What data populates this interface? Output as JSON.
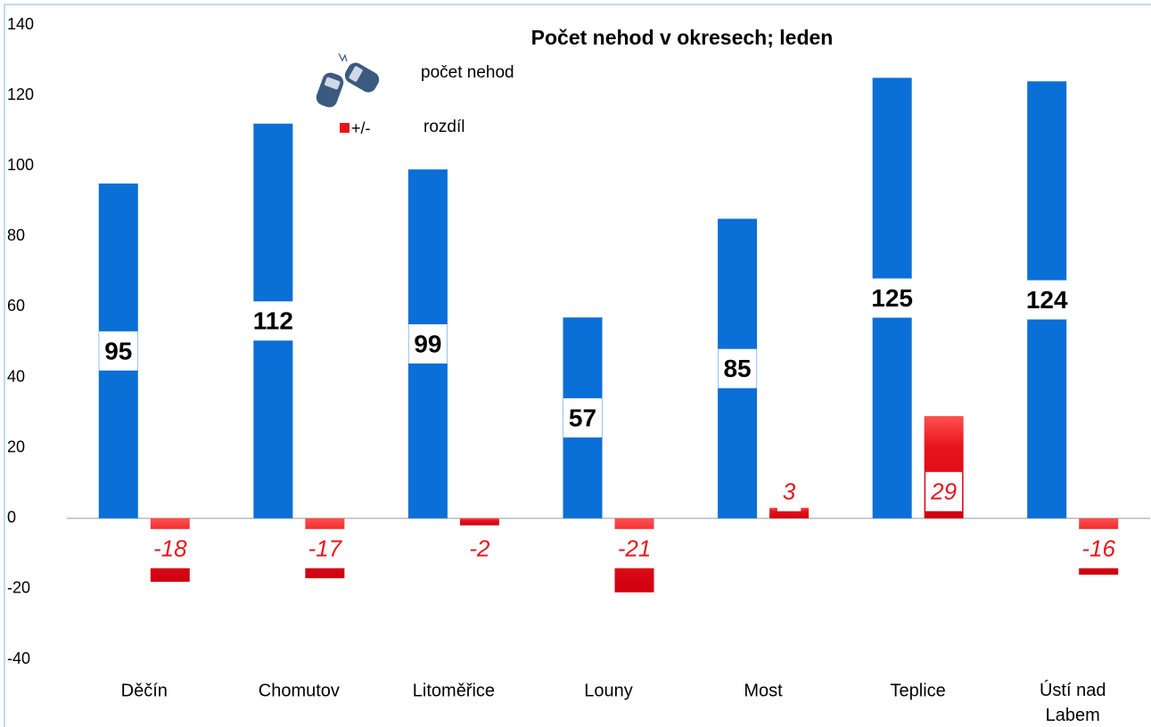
{
  "chart_data": {
    "type": "bar",
    "title": "Počet nehod v okresech; leden",
    "categories": [
      "Děčín",
      "Chomutov",
      "Litoměřice",
      "Louny",
      "Most",
      "Teplice",
      "Ústí nad Labem"
    ],
    "series": [
      {
        "name": "počet nehod",
        "color": "#0a6fd6",
        "values": [
          95,
          112,
          99,
          57,
          85,
          125,
          124
        ]
      },
      {
        "name": "rozdíl",
        "marker_label": "+/-",
        "color": "#e8141c",
        "values": [
          -18,
          -17,
          -2,
          -21,
          3,
          29,
          -16
        ]
      }
    ],
    "ylim": [
      -40,
      140
    ],
    "yticks": [
      -40,
      -20,
      0,
      20,
      40,
      60,
      80,
      100,
      120,
      140
    ]
  }
}
